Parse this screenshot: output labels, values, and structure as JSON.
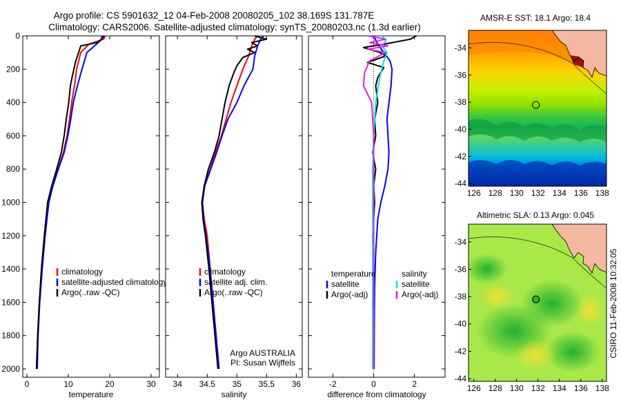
{
  "header": {
    "line1": "Argo profile: CS 5901632_12 04-Feb-2008 20080205_102 38.169S 131.787E",
    "line2": "Climatology: CARS2006. Satellite-adjusted climatology: synTS_20080203.nc (1.3d earlier)"
  },
  "side_label": "CSIRO 11-Feb-2008 10:32:05",
  "colors": {
    "red": "#ff0000",
    "blue": "#0000ff",
    "black": "#000000",
    "cyan": "#00e5e5",
    "magenta": "#e020e0"
  },
  "chart_data": [
    {
      "type": "line",
      "name": "temperature-profile",
      "xlabel": "temperature",
      "xlim": [
        -1,
        32
      ],
      "ylim": [
        2050,
        0
      ],
      "xticks": [
        0,
        10,
        20,
        30
      ],
      "yticks": [
        0,
        200,
        400,
        600,
        800,
        1000,
        1200,
        1400,
        1600,
        1800,
        2000
      ],
      "legend": [
        "climatology",
        "satellite-adjusted climatology",
        "Argo(..raw -QC)"
      ],
      "series": [
        {
          "name": "climatology",
          "color": "red",
          "points": [
            [
              19,
              0
            ],
            [
              18.5,
              20
            ],
            [
              15,
              50
            ],
            [
              13,
              100
            ],
            [
              12,
              200
            ],
            [
              11.5,
              300
            ],
            [
              10.8,
              400
            ],
            [
              10.3,
              500
            ],
            [
              9.7,
              600
            ],
            [
              8.8,
              700
            ],
            [
              7.5,
              800
            ],
            [
              6.2,
              900
            ],
            [
              5.2,
              1000
            ],
            [
              4.3,
              1200
            ],
            [
              3.6,
              1400
            ],
            [
              3,
              1600
            ],
            [
              2.6,
              1800
            ],
            [
              2.4,
              2000
            ]
          ]
        },
        {
          "name": "satellite-adjusted climatology",
          "color": "blue",
          "points": [
            [
              18.6,
              0
            ],
            [
              18.1,
              20
            ],
            [
              16.8,
              50
            ],
            [
              14.5,
              100
            ],
            [
              13.3,
              200
            ],
            [
              12.2,
              300
            ],
            [
              11.2,
              400
            ],
            [
              10.6,
              500
            ],
            [
              9.9,
              600
            ],
            [
              9,
              700
            ],
            [
              7.6,
              800
            ],
            [
              6.3,
              900
            ],
            [
              5.3,
              1000
            ],
            [
              4.4,
              1200
            ],
            [
              3.7,
              1400
            ],
            [
              3.1,
              1600
            ],
            [
              2.7,
              1800
            ],
            [
              2.5,
              2000
            ]
          ]
        },
        {
          "name": "Argo(..raw -QC)",
          "color": "black",
          "points": [
            [
              18.2,
              0
            ],
            [
              18,
              20
            ],
            [
              17,
              40
            ],
            [
              13,
              60
            ],
            [
              12.5,
              100
            ],
            [
              11.8,
              150
            ],
            [
              10.9,
              250
            ],
            [
              10.5,
              300
            ],
            [
              10.1,
              400
            ],
            [
              9.5,
              500
            ],
            [
              9,
              600
            ],
            [
              8.3,
              700
            ],
            [
              7.2,
              800
            ],
            [
              6,
              900
            ],
            [
              5,
              1000
            ],
            [
              4.2,
              1200
            ],
            [
              3.5,
              1400
            ],
            [
              3,
              1600
            ],
            [
              2.6,
              1800
            ],
            [
              2.3,
              2000
            ]
          ]
        }
      ]
    },
    {
      "type": "line",
      "name": "salinity-profile",
      "xlabel": "salinity",
      "xlim": [
        33.8,
        36.1
      ],
      "ylim": [
        2050,
        0
      ],
      "xticks": [
        34,
        34.5,
        35,
        35.5,
        36
      ],
      "legend": [
        "climatology",
        "satellite adj. clim.",
        "Argo(..raw -QC)"
      ],
      "annotation": [
        "Argo AUSTRALIA",
        "PI: Susan Wijffels"
      ],
      "series": [
        {
          "name": "climatology",
          "color": "red",
          "points": [
            [
              35.35,
              0
            ],
            [
              35.3,
              20
            ],
            [
              35.25,
              60
            ],
            [
              35.2,
              120
            ],
            [
              35.1,
              200
            ],
            [
              35.0,
              300
            ],
            [
              34.9,
              400
            ],
            [
              34.82,
              500
            ],
            [
              34.74,
              600
            ],
            [
              34.64,
              700
            ],
            [
              34.55,
              800
            ],
            [
              34.45,
              900
            ],
            [
              34.42,
              1000
            ],
            [
              34.45,
              1100
            ],
            [
              34.5,
              1200
            ],
            [
              34.55,
              1400
            ],
            [
              34.6,
              1600
            ],
            [
              34.65,
              1800
            ],
            [
              34.7,
              2000
            ]
          ]
        },
        {
          "name": "satellite adj. clim.",
          "color": "blue",
          "points": [
            [
              35.45,
              0
            ],
            [
              35.4,
              20
            ],
            [
              35.35,
              60
            ],
            [
              35.3,
              120
            ],
            [
              35.27,
              200
            ],
            [
              35.12,
              300
            ],
            [
              35.0,
              400
            ],
            [
              34.85,
              500
            ],
            [
              34.75,
              600
            ],
            [
              34.66,
              700
            ],
            [
              34.56,
              800
            ],
            [
              34.46,
              900
            ],
            [
              34.42,
              1000
            ],
            [
              34.44,
              1100
            ],
            [
              34.48,
              1200
            ],
            [
              34.55,
              1400
            ],
            [
              34.6,
              1600
            ],
            [
              34.65,
              1800
            ],
            [
              34.7,
              2000
            ]
          ]
        },
        {
          "name": "Argo(..raw -QC)",
          "color": "black",
          "points": [
            [
              35.3,
              0
            ],
            [
              35.5,
              20
            ],
            [
              35.25,
              40
            ],
            [
              35.35,
              60
            ],
            [
              35.18,
              80
            ],
            [
              35.3,
              100
            ],
            [
              35.1,
              130
            ],
            [
              35.0,
              180
            ],
            [
              34.95,
              220
            ],
            [
              34.87,
              300
            ],
            [
              34.8,
              400
            ],
            [
              34.75,
              500
            ],
            [
              34.7,
              600
            ],
            [
              34.62,
              700
            ],
            [
              34.52,
              800
            ],
            [
              34.45,
              900
            ],
            [
              34.41,
              1000
            ],
            [
              34.43,
              1100
            ],
            [
              34.47,
              1200
            ],
            [
              34.53,
              1400
            ],
            [
              34.58,
              1600
            ],
            [
              34.63,
              1800
            ],
            [
              34.68,
              2000
            ]
          ]
        }
      ]
    },
    {
      "type": "line",
      "name": "difference-profile",
      "xlabel": "difference from climatology",
      "xlim": [
        -3.2,
        3.5
      ],
      "ylim": [
        2050,
        0
      ],
      "xticks": [
        -2,
        0,
        2
      ],
      "legend_left_title": "temperature",
      "legend_right_title": "salinity",
      "legend_left": [
        "satellite",
        "Argo(-adj)"
      ],
      "legend_right": [
        "satellite",
        "Argo(-adj)"
      ],
      "series": [
        {
          "name": "temperature satellite",
          "color": "blue",
          "points": [
            [
              0,
              0
            ],
            [
              0.2,
              50
            ],
            [
              0.8,
              150
            ],
            [
              0.9,
              200
            ],
            [
              0.85,
              300
            ],
            [
              0.75,
              400
            ],
            [
              0.65,
              500
            ],
            [
              0.7,
              600
            ],
            [
              0.75,
              700
            ],
            [
              0.7,
              800
            ],
            [
              0.55,
              900
            ],
            [
              0.35,
              1000
            ],
            [
              0.2,
              1100
            ],
            [
              0.1,
              1300
            ],
            [
              0.05,
              1500
            ],
            [
              0.03,
              1700
            ],
            [
              0.02,
              2000
            ]
          ]
        },
        {
          "name": "temperature Argo(-adj)",
          "color": "black",
          "points": [
            [
              2.1,
              0
            ],
            [
              1.8,
              20
            ],
            [
              0.5,
              50
            ],
            [
              -0.5,
              70
            ],
            [
              0.3,
              100
            ],
            [
              0.6,
              120
            ],
            [
              -0.3,
              160
            ],
            [
              0.5,
              190
            ],
            [
              0.2,
              250
            ],
            [
              0.1,
              300
            ],
            [
              0.2,
              400
            ],
            [
              0.05,
              500
            ],
            [
              0.1,
              600
            ],
            [
              -0.05,
              700
            ],
            [
              0.1,
              800
            ],
            [
              0,
              900
            ],
            [
              0.05,
              1000
            ],
            [
              -0.05,
              1200
            ],
            [
              0,
              1400
            ],
            [
              -0.05,
              1600
            ],
            [
              0,
              1800
            ],
            [
              -0.02,
              2000
            ]
          ]
        },
        {
          "name": "salinity satellite",
          "color": "cyan",
          "points": [
            [
              0.4,
              0
            ],
            [
              0.6,
              30
            ],
            [
              0.4,
              60
            ],
            [
              0.65,
              100
            ],
            [
              0.5,
              150
            ],
            [
              0.3,
              250
            ],
            [
              0.1,
              400
            ],
            [
              0,
              600
            ],
            [
              -0.05,
              800
            ],
            [
              -0.05,
              1000
            ],
            [
              -0.05,
              1200
            ],
            [
              -0.05,
              1500
            ],
            [
              -0.05,
              2000
            ]
          ]
        },
        {
          "name": "salinity Argo(-adj)",
          "color": "magenta",
          "points": [
            [
              -0.3,
              0
            ],
            [
              0.6,
              20
            ],
            [
              -0.2,
              40
            ],
            [
              0.7,
              60
            ],
            [
              -0.3,
              80
            ],
            [
              0.6,
              100
            ],
            [
              -0.2,
              150
            ],
            [
              -0.45,
              220
            ],
            [
              -0.5,
              300
            ],
            [
              -0.1,
              400
            ],
            [
              -0.05,
              500
            ],
            [
              0,
              600
            ],
            [
              0,
              800
            ],
            [
              0,
              1000
            ],
            [
              0,
              1500
            ],
            [
              0,
              2000
            ]
          ]
        }
      ]
    }
  ],
  "maps": [
    {
      "name": "sst-map",
      "title": "AMSR-E SST: 18.1  Argo: 18.4",
      "xlim": [
        125.5,
        138.4
      ],
      "ylim": [
        -44.2,
        -32.7
      ],
      "xticks": [
        126,
        128,
        130,
        132,
        134,
        136,
        138
      ],
      "yticks": [
        -34,
        -36,
        -38,
        -40,
        -42,
        -44
      ],
      "xticklabels": [
        "126",
        "128",
        "130",
        "132",
        "134",
        "136",
        "138"
      ],
      "yticklabels": [
        "-34",
        "-36",
        "-38",
        "-40",
        "-42",
        "-44"
      ],
      "marker": {
        "lon": 131.8,
        "lat": -38.2
      }
    },
    {
      "name": "sla-map",
      "title": "Altimetric SLA: 0.13  Argo: 0.045",
      "xlim": [
        125.5,
        138.4
      ],
      "ylim": [
        -44.2,
        -32.7
      ],
      "xticks": [
        126,
        128,
        130,
        132,
        134,
        136,
        138
      ],
      "yticks": [
        -34,
        -36,
        -38,
        -40,
        -42,
        -44
      ],
      "xticklabels": [
        "126",
        "128",
        "130",
        "132",
        "134",
        "136",
        "138"
      ],
      "yticklabels": [
        "-34",
        "-36",
        "-38",
        "-40",
        "-42",
        "-44"
      ],
      "marker": {
        "lon": 131.8,
        "lat": -38.2
      }
    }
  ]
}
